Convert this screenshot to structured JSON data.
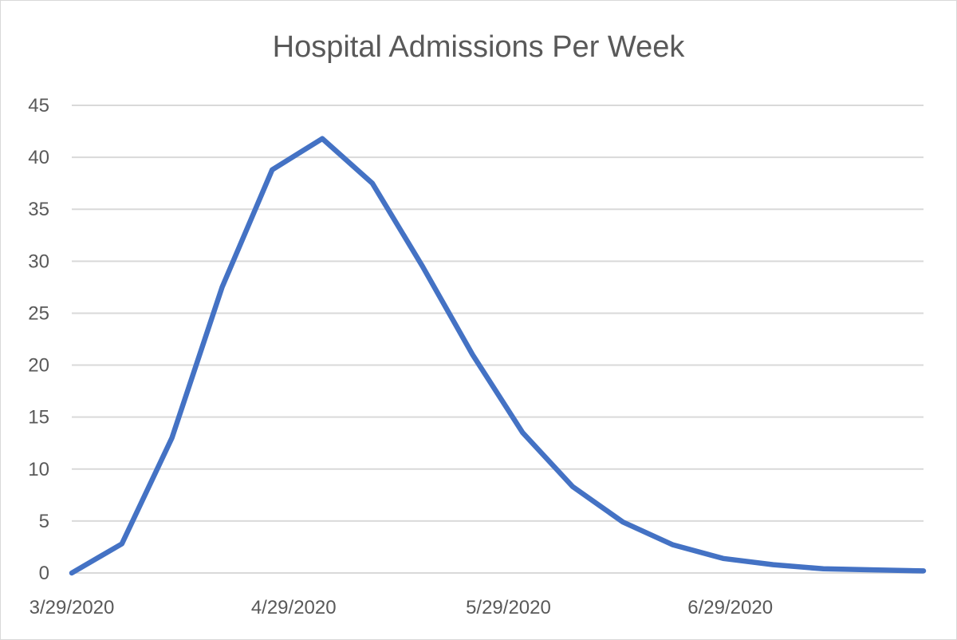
{
  "chart_data": {
    "type": "line",
    "title": "Hospital Admissions Per Week",
    "xlabel": "",
    "ylabel": "",
    "ylim": [
      0,
      45
    ],
    "y_ticks": [
      "0",
      "5",
      "10",
      "15",
      "20",
      "25",
      "30",
      "35",
      "40",
      "45"
    ],
    "x_tick_labels": [
      "3/29/2020",
      "4/29/2020",
      "5/29/2020",
      "6/29/2020"
    ],
    "x_tick_dates": [
      "2020-03-29",
      "2020-04-29",
      "2020-05-29",
      "2020-06-29"
    ],
    "xlim": [
      "2020-03-29",
      "2020-07-26"
    ],
    "grid": true,
    "legend": "none",
    "color": "#4472c4",
    "series": [
      {
        "x": [
          "2020-03-29",
          "2020-04-05",
          "2020-04-12",
          "2020-04-19",
          "2020-04-26",
          "2020-05-03",
          "2020-05-10",
          "2020-05-17",
          "2020-05-24",
          "2020-05-31",
          "2020-06-07",
          "2020-06-14",
          "2020-06-21",
          "2020-06-28",
          "2020-07-05",
          "2020-07-12",
          "2020-07-19",
          "2020-07-26"
        ],
        "values": [
          0,
          2.8,
          13,
          27.5,
          38.8,
          41.8,
          37.5,
          29.5,
          21,
          13.5,
          8.3,
          4.9,
          2.7,
          1.4,
          0.8,
          0.4,
          0.3,
          0.2
        ]
      }
    ]
  }
}
